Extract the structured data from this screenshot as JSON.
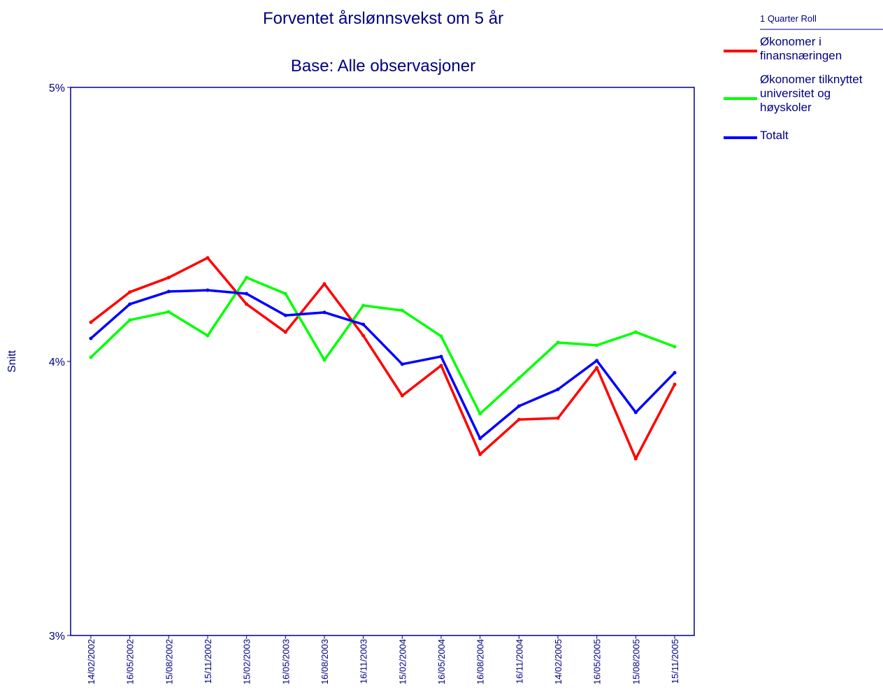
{
  "chart_data": {
    "type": "line",
    "title": "Forventet årslønnsvekst om 5 år",
    "subtitle": "Base: Alle observasjoner",
    "y_label": "Snitt",
    "legend_title": "1 Quarter Roll",
    "categories": [
      "14/02/2002",
      "16/05/2002",
      "15/08/2002",
      "15/11/2002",
      "15/02/2003",
      "16/05/2003",
      "16/08/2003",
      "16/11/2003",
      "15/02/2004",
      "16/05/2004",
      "16/08/2004",
      "16/11/2004",
      "14/02/2005",
      "16/05/2005",
      "15/08/2005",
      "15/11/2005"
    ],
    "series": [
      {
        "name": "Økonomer i finansnæringen",
        "color": "#ff0000",
        "values": [
          4.143,
          4.253,
          4.306,
          4.378,
          4.209,
          4.107,
          4.283,
          4.094,
          3.875,
          3.985,
          3.661,
          3.788,
          3.793,
          3.977,
          3.645,
          3.916
        ]
      },
      {
        "name": "Økonomer tilknyttet universitet og høyskoler",
        "color": "#00ff00",
        "values": [
          4.015,
          4.151,
          4.181,
          4.094,
          4.306,
          4.247,
          4.005,
          4.204,
          4.186,
          4.092,
          3.809,
          3.939,
          4.069,
          4.059,
          4.107,
          4.054
        ]
      },
      {
        "name": "Totalt",
        "color": "#0000ff",
        "values": [
          4.084,
          4.209,
          4.255,
          4.26,
          4.247,
          4.168,
          4.179,
          4.135,
          3.99,
          4.018,
          3.719,
          3.837,
          3.898,
          4.003,
          3.814,
          3.959
        ]
      }
    ],
    "ylim": [
      3,
      5
    ],
    "yticks": [
      {
        "value": 3,
        "label": "3%"
      },
      {
        "value": 4,
        "label": "4%"
      },
      {
        "value": 5,
        "label": "5%"
      }
    ]
  }
}
